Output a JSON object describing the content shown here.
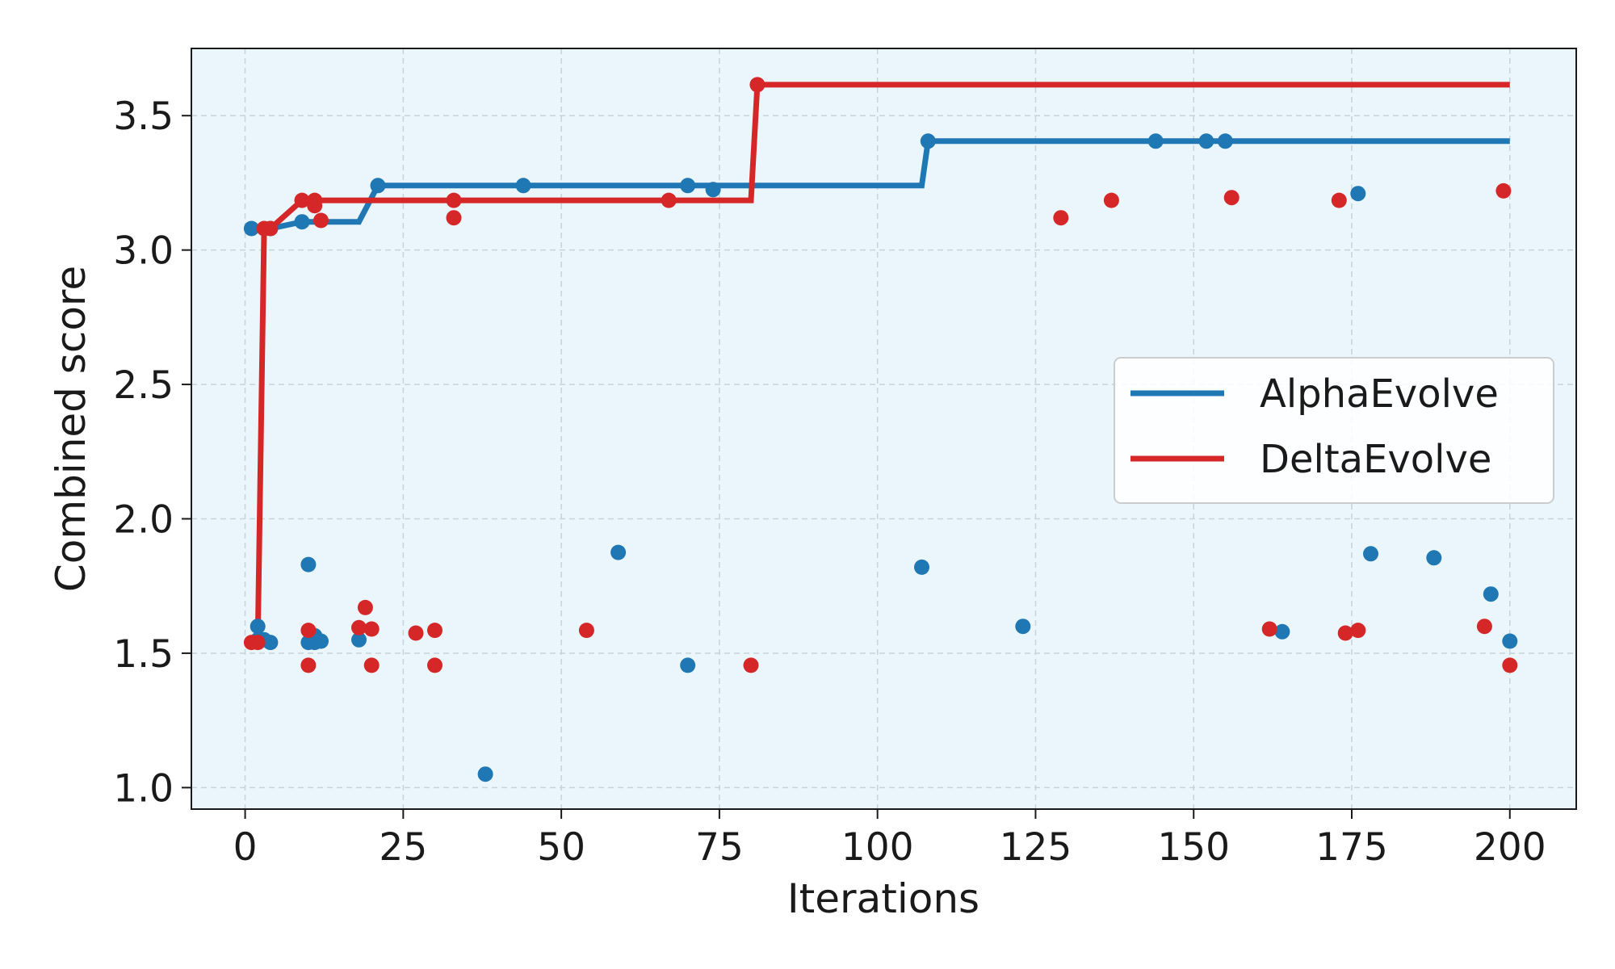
{
  "chart_data": {
    "type": "line",
    "title": "",
    "xlabel": "Iterations",
    "ylabel": "Combined score",
    "xlim": [
      -8.5,
      210.5
    ],
    "ylim": [
      0.92,
      3.75
    ],
    "x_ticks": [
      0,
      25,
      50,
      75,
      100,
      125,
      150,
      175,
      200
    ],
    "y_ticks": [
      1.0,
      1.5,
      2.0,
      2.5,
      3.0,
      3.5
    ],
    "x_tick_labels": [
      "0",
      "25",
      "50",
      "75",
      "100",
      "125",
      "150",
      "175",
      "200"
    ],
    "y_tick_labels": [
      "1.0",
      "1.5",
      "2.0",
      "2.5",
      "3.0",
      "3.5"
    ],
    "grid": true,
    "plot_background": "#eaf6fc",
    "legend_position": "center-right",
    "series": [
      {
        "name": "AlphaEvolve",
        "color": "#1f77b4",
        "best_line": [
          [
            1,
            3.08
          ],
          [
            4,
            3.08
          ],
          [
            9,
            3.105
          ],
          [
            18,
            3.105
          ],
          [
            21,
            3.24
          ],
          [
            107,
            3.24
          ],
          [
            108,
            3.405
          ],
          [
            200,
            3.405
          ]
        ],
        "points": [
          [
            1,
            3.08
          ],
          [
            2,
            1.6
          ],
          [
            2,
            1.55
          ],
          [
            3,
            1.55
          ],
          [
            4,
            1.54
          ],
          [
            4,
            3.08
          ],
          [
            9,
            3.105
          ],
          [
            10,
            1.83
          ],
          [
            10,
            1.54
          ],
          [
            11,
            1.565
          ],
          [
            11,
            1.54
          ],
          [
            12,
            1.545
          ],
          [
            18,
            1.55
          ],
          [
            21,
            3.24
          ],
          [
            38,
            1.05
          ],
          [
            44,
            3.24
          ],
          [
            59,
            1.875
          ],
          [
            70,
            3.24
          ],
          [
            70,
            1.455
          ],
          [
            74,
            3.225
          ],
          [
            107,
            1.82
          ],
          [
            108,
            3.405
          ],
          [
            123,
            1.6
          ],
          [
            144,
            3.405
          ],
          [
            152,
            3.405
          ],
          [
            155,
            3.405
          ],
          [
            164,
            1.58
          ],
          [
            176,
            3.21
          ],
          [
            178,
            1.87
          ],
          [
            188,
            1.855
          ],
          [
            197,
            1.72
          ],
          [
            200,
            1.545
          ]
        ]
      },
      {
        "name": "DeltaEvolve",
        "color": "#d62728",
        "best_line": [
          [
            1,
            1.54
          ],
          [
            2,
            1.54
          ],
          [
            3,
            3.08
          ],
          [
            4,
            3.08
          ],
          [
            9,
            3.185
          ],
          [
            80,
            3.185
          ],
          [
            81,
            3.615
          ],
          [
            200,
            3.615
          ]
        ],
        "points": [
          [
            1,
            1.54
          ],
          [
            2,
            1.54
          ],
          [
            3,
            3.08
          ],
          [
            4,
            3.08
          ],
          [
            9,
            3.185
          ],
          [
            10,
            1.585
          ],
          [
            10,
            1.455
          ],
          [
            11,
            3.185
          ],
          [
            11,
            3.165
          ],
          [
            12,
            3.11
          ],
          [
            18,
            1.595
          ],
          [
            19,
            1.67
          ],
          [
            20,
            1.59
          ],
          [
            20,
            1.455
          ],
          [
            27,
            1.575
          ],
          [
            30,
            1.585
          ],
          [
            30,
            1.455
          ],
          [
            33,
            3.185
          ],
          [
            33,
            3.12
          ],
          [
            54,
            1.585
          ],
          [
            67,
            3.185
          ],
          [
            80,
            1.455
          ],
          [
            81,
            3.615
          ],
          [
            129,
            3.12
          ],
          [
            137,
            3.185
          ],
          [
            156,
            3.195
          ],
          [
            162,
            1.59
          ],
          [
            173,
            3.185
          ],
          [
            174,
            1.575
          ],
          [
            176,
            1.585
          ],
          [
            196,
            1.6
          ],
          [
            199,
            3.22
          ],
          [
            200,
            1.455
          ]
        ]
      }
    ]
  }
}
